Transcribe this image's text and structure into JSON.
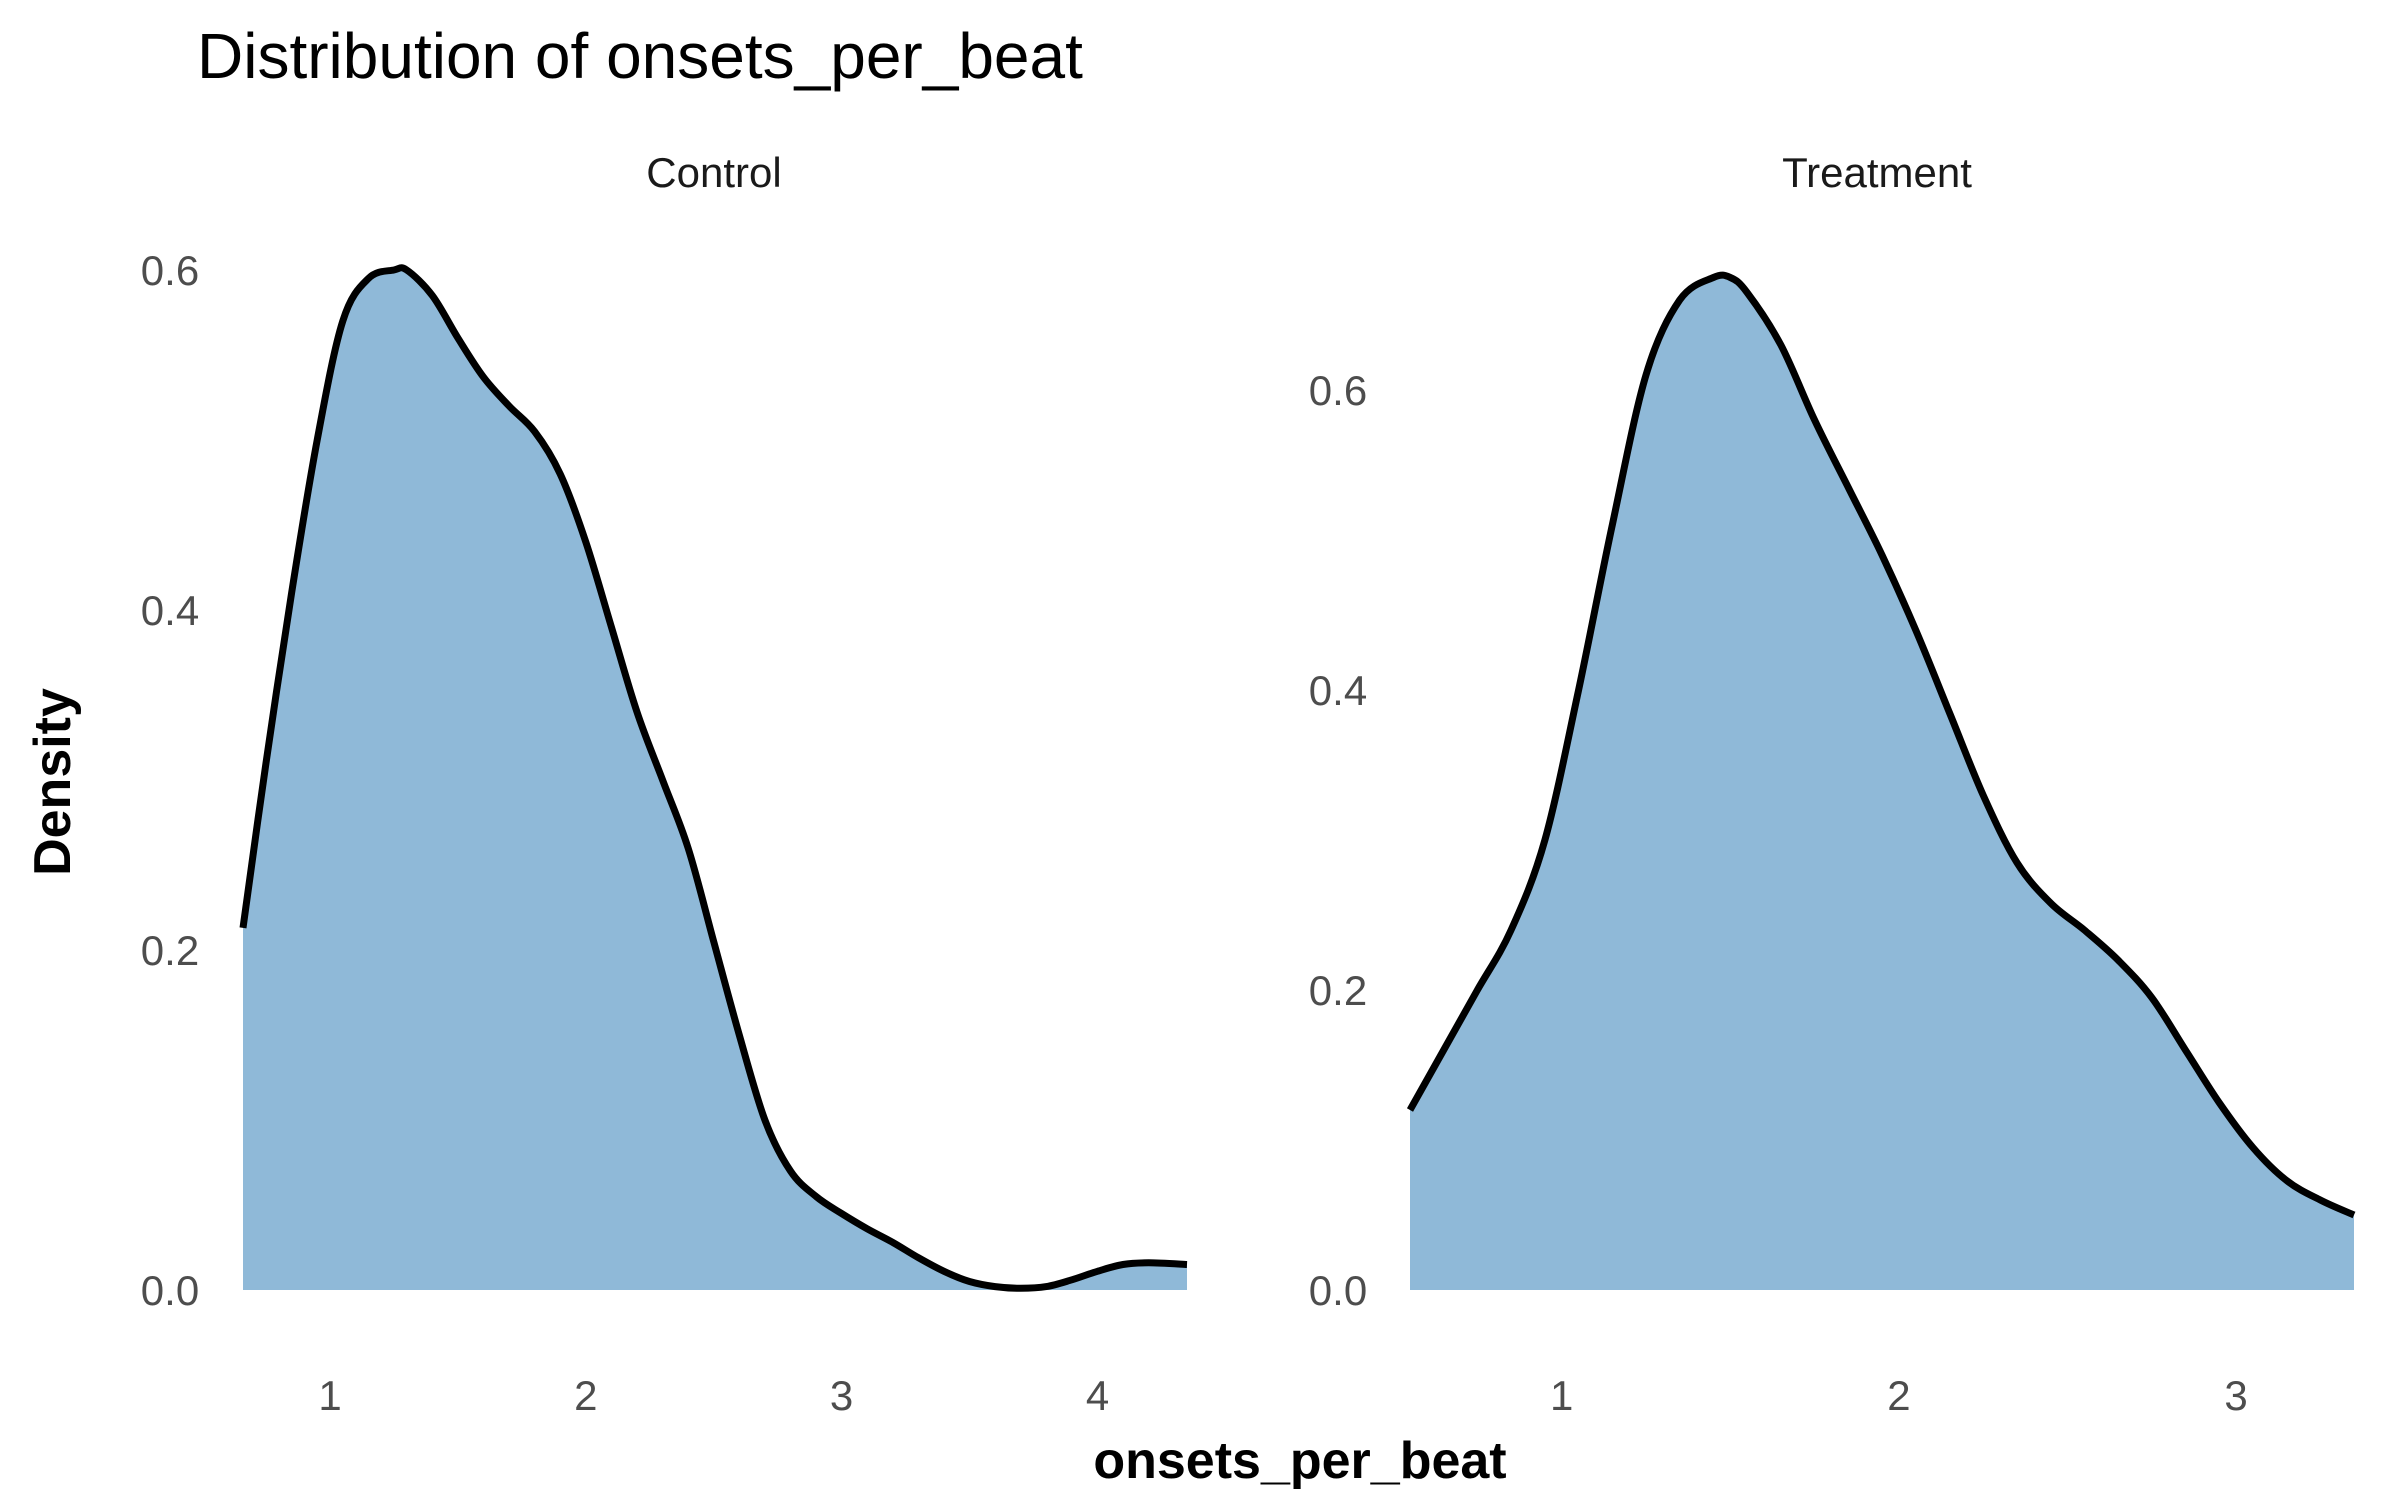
{
  "chart_data": {
    "type": "area",
    "title": "Distribution of onsets_per_beat",
    "xlabel": "onsets_per_beat",
    "ylabel": "Density",
    "fill_color": "#8fb9d8",
    "line_color": "#000000",
    "panels": [
      {
        "name": "Control",
        "xlim": [
          0.66,
          4.35
        ],
        "ylim": [
          0,
          0.6
        ],
        "x_ticks": [
          1,
          2,
          3,
          4
        ],
        "y_ticks": [
          "0.0",
          "0.2",
          "0.4",
          "0.6"
        ],
        "x": [
          0.66,
          0.75,
          0.85,
          0.95,
          1.05,
          1.15,
          1.25,
          1.3,
          1.4,
          1.5,
          1.6,
          1.7,
          1.8,
          1.9,
          2.0,
          2.1,
          2.2,
          2.3,
          2.4,
          2.5,
          2.6,
          2.7,
          2.8,
          2.9,
          3.0,
          3.1,
          3.2,
          3.3,
          3.4,
          3.5,
          3.6,
          3.7,
          3.8,
          3.9,
          4.0,
          4.1,
          4.2,
          4.35
        ],
        "y": [
          0.213,
          0.31,
          0.41,
          0.5,
          0.57,
          0.595,
          0.6,
          0.6,
          0.585,
          0.56,
          0.537,
          0.52,
          0.505,
          0.48,
          0.44,
          0.39,
          0.34,
          0.3,
          0.26,
          0.205,
          0.15,
          0.1,
          0.07,
          0.055,
          0.045,
          0.036,
          0.028,
          0.019,
          0.011,
          0.005,
          0.002,
          0.001,
          0.002,
          0.006,
          0.011,
          0.015,
          0.016,
          0.015
        ]
      },
      {
        "name": "Treatment",
        "xlim": [
          0.55,
          3.35
        ],
        "ylim": [
          0,
          0.68
        ],
        "x_ticks": [
          1,
          2,
          3
        ],
        "y_ticks": [
          "0.0",
          "0.2",
          "0.4",
          "0.6"
        ],
        "x": [
          0.55,
          0.65,
          0.75,
          0.85,
          0.95,
          1.05,
          1.15,
          1.25,
          1.35,
          1.45,
          1.5,
          1.55,
          1.65,
          1.75,
          1.85,
          1.95,
          2.05,
          2.15,
          2.25,
          2.35,
          2.45,
          2.55,
          2.65,
          2.75,
          2.85,
          2.95,
          3.05,
          3.15,
          3.25,
          3.35
        ],
        "y": [
          0.12,
          0.16,
          0.2,
          0.24,
          0.3,
          0.4,
          0.51,
          0.61,
          0.66,
          0.675,
          0.675,
          0.665,
          0.63,
          0.58,
          0.535,
          0.49,
          0.44,
          0.385,
          0.33,
          0.285,
          0.258,
          0.24,
          0.22,
          0.195,
          0.16,
          0.125,
          0.095,
          0.073,
          0.06,
          0.05
        ]
      }
    ]
  }
}
